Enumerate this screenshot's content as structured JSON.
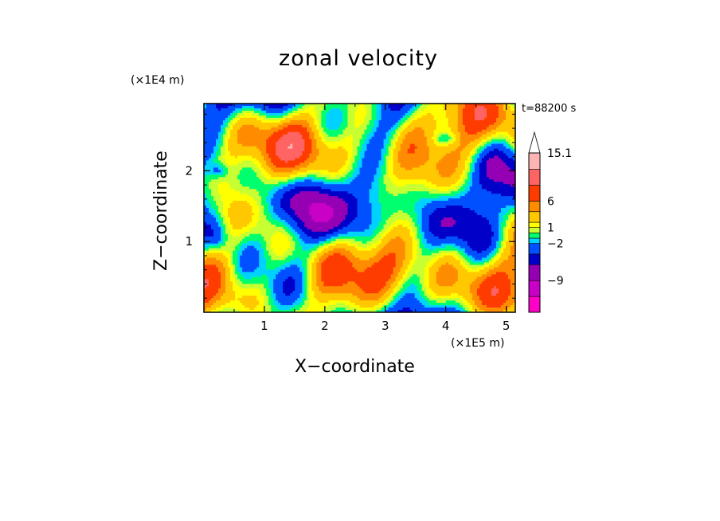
{
  "chart_data": {
    "type": "heatmap",
    "title": "zonal velocity",
    "xlabel": "X−coordinate",
    "ylabel": "Z−coordinate",
    "x_unit": "(×1E5 m)",
    "y_unit": "(×1E4 m)",
    "time_label": "t=88200 s",
    "xlim": [
      0,
      5.15
    ],
    "ylim": [
      0,
      2.95
    ],
    "x_ticks": [
      1,
      2,
      3,
      4,
      5
    ],
    "y_ticks": [
      1,
      2
    ],
    "colorbar": {
      "tick_labels": [
        "15.1",
        "6",
        "1",
        "−2",
        "−9"
      ],
      "tick_values": [
        15.1,
        6,
        1,
        -2,
        -9
      ],
      "levels": [
        -15,
        -12,
        -9,
        -6,
        -4,
        -2,
        -1,
        0,
        1,
        2,
        4,
        6,
        9,
        12,
        15.1
      ],
      "colors": [
        "#ff00c8",
        "#c800c8",
        "#9600b4",
        "#0000c8",
        "#0050ff",
        "#00d2ff",
        "#00ff6e",
        "#c8ff32",
        "#ffff00",
        "#ffc800",
        "#ff8c00",
        "#ff3c00",
        "#ff6464",
        "#ffb4b4"
      ],
      "extend_max": true
    },
    "field_description": "wave-like alternating zonal velocity pattern, mostly between -9 and 9 m/s"
  }
}
